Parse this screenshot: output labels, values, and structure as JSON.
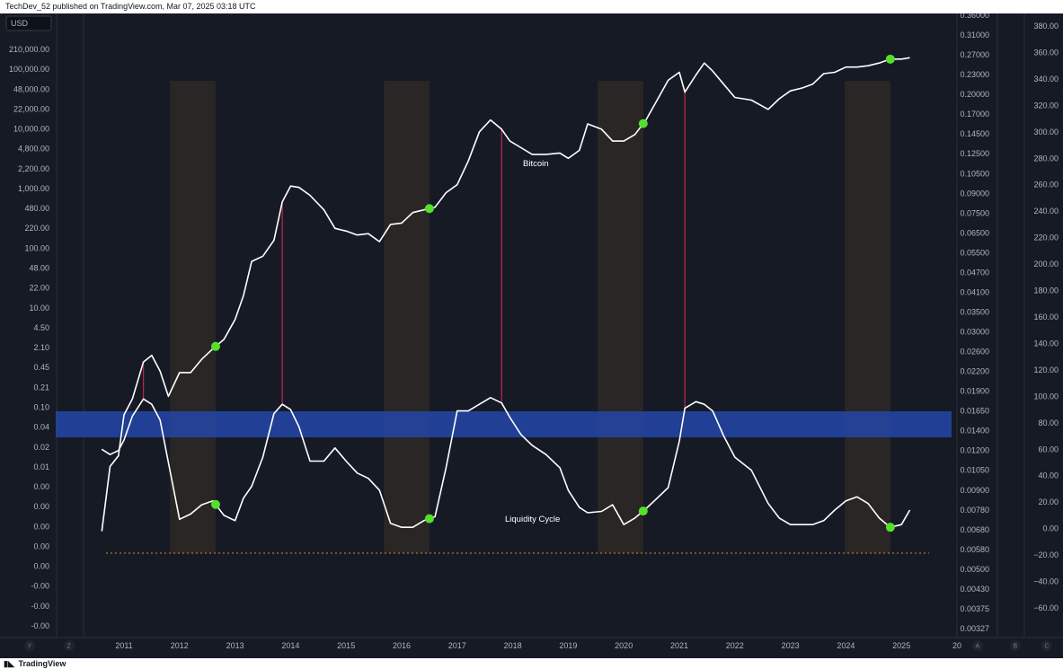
{
  "header": {
    "published": "TechDev_52 published on TradingView.com, Mar 07, 2025 03:18 UTC"
  },
  "footer": {
    "brand": "TradingView"
  },
  "currency_badge": "USD",
  "scale_buttons": {
    "y": "Y",
    "z": "Z",
    "a": "A",
    "b": "B",
    "c": "C"
  },
  "colors": {
    "background": "#161a25",
    "line": "#ffffff",
    "band": "#2346a8",
    "shade": "#3a3127",
    "marker": "#54e02c",
    "peak_line": "#c2264b",
    "baseline": "#d98a2b"
  },
  "chart_data": {
    "type": "line",
    "x_tick_labels": [
      "2011",
      "2012",
      "2013",
      "2014",
      "2015",
      "2016",
      "2017",
      "2018",
      "2019",
      "2020",
      "2021",
      "2022",
      "2023",
      "2024",
      "2025",
      "20"
    ],
    "left_axis_labels": [
      "210,000.00",
      "100,000.00",
      "48,000.00",
      "22,000.00",
      "10,000.00",
      "4,800.00",
      "2,200.00",
      "1,000.00",
      "480.00",
      "220.00",
      "100.00",
      "48.00",
      "22.00",
      "10.00",
      "4.50",
      "2.10",
      "0.45",
      "0.21",
      "0.10",
      "0.04",
      "0.02",
      "0.01",
      "0.00",
      "0.00",
      "0.00",
      "0.00",
      "0.00",
      "-0.00",
      "-0.00",
      "-0.00"
    ],
    "mid_axis_labels": [
      "0.36000",
      "0.31000",
      "0.27000",
      "0.23000",
      "0.20000",
      "0.17000",
      "0.14500",
      "0.12500",
      "0.10500",
      "0.09000",
      "0.07500",
      "0.06500",
      "0.05500",
      "0.04700",
      "0.04100",
      "0.03500",
      "0.03000",
      "0.02600",
      "0.02200",
      "0.01900",
      "0.01650",
      "0.01400",
      "0.01200",
      "0.01050",
      "0.00900",
      "0.00780",
      "0.00680",
      "0.00580",
      "0.00500",
      "0.00430",
      "0.00375",
      "0.00327"
    ],
    "right_axis_labels": [
      "380.00",
      "360.00",
      "340.00",
      "320.00",
      "300.00",
      "280.00",
      "260.00",
      "240.00",
      "220.00",
      "200.00",
      "180.00",
      "160.00",
      "140.00",
      "120.00",
      "100.00",
      "80.00",
      "60.00",
      "40.00",
      "20.00",
      "0.00",
      "−20.00",
      "−40.00",
      "−60.00"
    ],
    "right_axis_ylim": [
      -60,
      380
    ],
    "annotations": [
      "Bitcoin",
      "Liquidity Cycle"
    ],
    "series": [
      {
        "name": "Bitcoin",
        "x": [
          2010.6,
          2010.75,
          2010.9,
          2011.0,
          2011.15,
          2011.35,
          2011.5,
          2011.65,
          2011.8,
          2012.0,
          2012.2,
          2012.4,
          2012.6,
          2012.8,
          2013.0,
          2013.15,
          2013.3,
          2013.5,
          2013.7,
          2013.85,
          2014.0,
          2014.15,
          2014.35,
          2014.6,
          2014.8,
          2015.0,
          2015.2,
          2015.4,
          2015.6,
          2015.8,
          2016.0,
          2016.2,
          2016.4,
          2016.6,
          2016.8,
          2017.0,
          2017.2,
          2017.4,
          2017.6,
          2017.8,
          2017.95,
          2018.15,
          2018.35,
          2018.6,
          2018.85,
          2019.0,
          2019.2,
          2019.35,
          2019.6,
          2019.8,
          2020.0,
          2020.2,
          2020.4,
          2020.6,
          2020.8,
          2021.0,
          2021.1,
          2021.3,
          2021.45,
          2021.6,
          2021.8,
          2022.0,
          2022.3,
          2022.6,
          2022.8,
          2023.0,
          2023.2,
          2023.4,
          2023.6,
          2023.8,
          2024.0,
          2024.2,
          2024.4,
          2024.6,
          2024.8,
          2025.0,
          2025.15
        ],
        "values": [
          -2,
          47,
          55,
          86,
          98,
          126,
          131,
          119,
          100,
          118,
          118,
          128,
          136,
          143,
          158,
          176,
          202,
          206,
          218,
          247,
          259,
          258,
          252,
          241,
          227,
          225,
          222,
          223,
          217,
          230,
          231,
          239,
          241,
          243,
          254,
          260,
          278,
          300,
          309,
          302,
          293,
          288,
          283,
          283,
          284,
          280,
          286,
          306,
          302,
          293,
          293,
          298,
          309,
          324,
          339,
          345,
          330,
          343,
          352,
          346,
          336,
          326,
          324,
          317,
          325,
          331,
          333,
          336,
          344,
          345,
          349,
          349,
          350,
          352,
          355,
          355,
          356
        ]
      },
      {
        "name": "Liquidity Cycle",
        "x": [
          2010.6,
          2010.75,
          2010.9,
          2011.0,
          2011.15,
          2011.35,
          2011.5,
          2011.65,
          2011.8,
          2012.0,
          2012.2,
          2012.4,
          2012.6,
          2012.8,
          2013.0,
          2013.15,
          2013.3,
          2013.5,
          2013.7,
          2013.85,
          2014.0,
          2014.15,
          2014.35,
          2014.6,
          2014.8,
          2015.0,
          2015.2,
          2015.4,
          2015.6,
          2015.8,
          2016.0,
          2016.2,
          2016.4,
          2016.6,
          2016.8,
          2017.0,
          2017.2,
          2017.4,
          2017.6,
          2017.8,
          2017.95,
          2018.15,
          2018.35,
          2018.6,
          2018.85,
          2019.0,
          2019.2,
          2019.35,
          2019.6,
          2019.8,
          2020.0,
          2020.2,
          2020.4,
          2020.6,
          2020.8,
          2021.0,
          2021.1,
          2021.3,
          2021.45,
          2021.6,
          2021.8,
          2022.0,
          2022.3,
          2022.6,
          2022.8,
          2023.0,
          2023.2,
          2023.4,
          2023.6,
          2023.8,
          2024.0,
          2024.2,
          2024.4,
          2024.6,
          2024.8,
          2025.0,
          2025.15
        ],
        "values": [
          60,
          56,
          59,
          67,
          85,
          98,
          94,
          82,
          50,
          7,
          11,
          18,
          21,
          10,
          6,
          23,
          32,
          54,
          87,
          94,
          90,
          77,
          51,
          51,
          61,
          51,
          42,
          38,
          29,
          4,
          1,
          1,
          6,
          9,
          46,
          89,
          89,
          94,
          99,
          95,
          84,
          71,
          63,
          56,
          46,
          29,
          16,
          12,
          13,
          18,
          3,
          8,
          15,
          23,
          31,
          66,
          91,
          96,
          94,
          89,
          70,
          54,
          44,
          19,
          8,
          3,
          3,
          3,
          6,
          14,
          21,
          24,
          19,
          8,
          1,
          3,
          14
        ]
      }
    ],
    "highlighted_x": [
      2012.65,
      2016.5,
      2020.35,
      2024.8
    ]
  }
}
